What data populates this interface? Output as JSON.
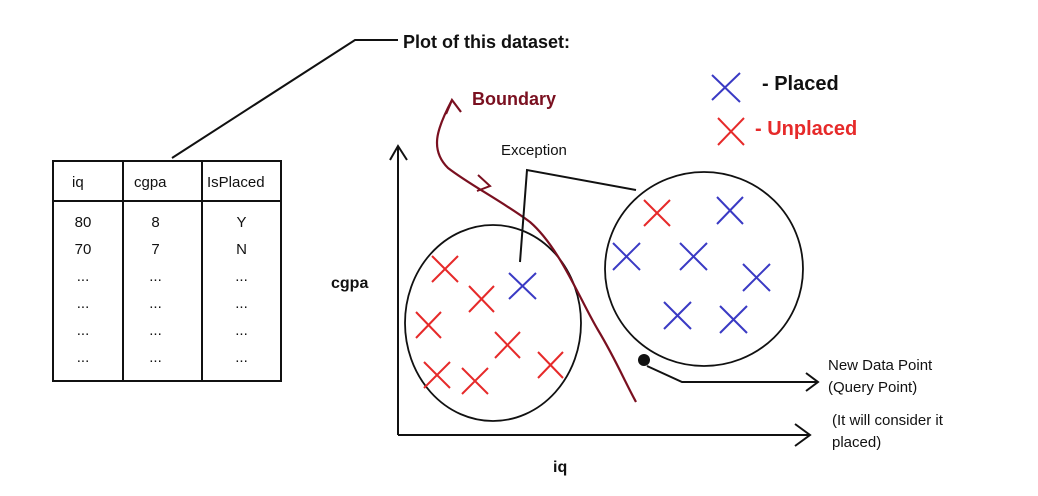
{
  "title": "Plot of this dataset:",
  "table": {
    "headers": [
      "iq",
      "cgpa",
      "IsPlaced"
    ],
    "columns": [
      [
        "80",
        "70",
        "...",
        "...",
        "...",
        "..."
      ],
      [
        "8",
        "7",
        "...",
        "...",
        "...",
        "..."
      ],
      [
        "Y",
        "N",
        "...",
        "...",
        "...",
        "..."
      ]
    ]
  },
  "boundary_label": "Boundary",
  "exception_label": "Exception",
  "legend": [
    {
      "label": "- Placed",
      "color": "#3a3ac4"
    },
    {
      "label": "- Unplaced",
      "color": "#e62a2a"
    }
  ],
  "axes": {
    "x_label": "iq",
    "y_label": "cgpa"
  },
  "query_point": {
    "line1": "New Data Point",
    "line2": "(Query Point)"
  },
  "consider_note": {
    "line1": "(It will consider it",
    "line2": "placed)"
  },
  "colors": {
    "boundary": "#7a1020",
    "placed": "#3a3ac4",
    "unplaced": "#e62a2a",
    "ink": "#111111"
  }
}
